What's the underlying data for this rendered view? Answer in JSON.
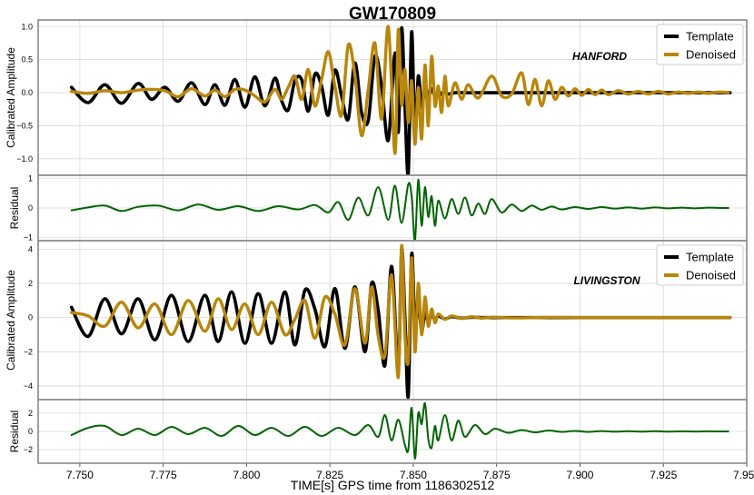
{
  "title": "GW170809",
  "xlabel": "TIME[s] GPS time from 1186302512",
  "colors": {
    "template": "#000000",
    "denoised": "#b8860b",
    "residual": "#006400",
    "grid": "#d9d9d9",
    "frame": "#888888"
  },
  "chart_data": [
    {
      "type": "line",
      "panel": "hanford-amplitude",
      "ylabel": "Calibrated Amplitude",
      "annotation": "HANFORD",
      "legend": {
        "placement": "top-right",
        "entries": [
          "Template",
          "Denoised"
        ]
      },
      "xlim": [
        7.7375,
        7.95
      ],
      "ylim": [
        -1.25,
        1.1
      ],
      "yticks": [
        -1.0,
        -0.5,
        0.0,
        0.5,
        1.0
      ],
      "ytick_labels": [
        "−1.0",
        "−0.5",
        "0.0",
        "0.5",
        "1.0"
      ],
      "grid": true,
      "series": [
        {
          "name": "Template",
          "color": "#000000",
          "x": [
            7.7475,
            7.7525,
            7.7575,
            7.7625,
            7.7675,
            7.7715,
            7.7755,
            7.7795,
            7.7835,
            7.7875,
            7.7905,
            7.7935,
            7.7965,
            7.7995,
            7.8025,
            7.8055,
            7.8085,
            7.8105,
            7.8125,
            7.8145,
            7.8165,
            7.8185,
            7.8205,
            7.8225,
            7.8245,
            7.8265,
            7.8285,
            7.8305,
            7.8325,
            7.8345,
            7.8365,
            7.8385,
            7.8405,
            7.8425,
            7.8445,
            7.8455,
            7.8465,
            7.8475,
            7.8485,
            7.8495,
            7.8505,
            7.8515,
            7.8525,
            7.8535,
            7.8545,
            7.8555,
            7.8565,
            7.8575,
            7.8585,
            7.8595,
            7.8605,
            7.8625,
            7.8645,
            7.8665,
            7.8695,
            7.8735,
            7.88,
            7.89,
            7.9,
            7.91,
            7.92,
            7.93,
            7.94,
            7.945
          ],
          "y": [
            0.08,
            -0.15,
            0.12,
            -0.16,
            0.14,
            -0.1,
            0.08,
            -0.13,
            0.15,
            -0.18,
            0.12,
            -0.19,
            0.2,
            -0.22,
            0.24,
            -0.2,
            0.22,
            -0.12,
            -0.26,
            0.18,
            0.2,
            -0.28,
            0.28,
            0.1,
            -0.34,
            0.34,
            -0.05,
            -0.4,
            0.45,
            -0.3,
            -0.42,
            0.55,
            0.1,
            -0.72,
            0.6,
            -0.6,
            0.98,
            -0.2,
            -1.22,
            0.92,
            -0.65,
            0.25,
            -0.22,
            0.1,
            -0.05,
            0.06,
            -0.05,
            0.03,
            -0.03,
            0.02,
            -0.02,
            0.0,
            0.0,
            0.0,
            0.0,
            0.0,
            0.0,
            0.0,
            0.0,
            0.0,
            0.0,
            0.0,
            0.0,
            0.0
          ]
        },
        {
          "name": "Denoised",
          "color": "#b8860b",
          "x": [
            7.7475,
            7.7525,
            7.7575,
            7.7625,
            7.7675,
            7.7715,
            7.7755,
            7.7795,
            7.7835,
            7.7875,
            7.7905,
            7.7935,
            7.7965,
            7.7995,
            7.8025,
            7.8055,
            7.8085,
            7.8105,
            7.8125,
            7.8145,
            7.8165,
            7.8185,
            7.8205,
            7.8225,
            7.8245,
            7.8265,
            7.8285,
            7.8305,
            7.8325,
            7.8345,
            7.8365,
            7.8385,
            7.8405,
            7.8425,
            7.8445,
            7.8455,
            7.8465,
            7.8475,
            7.8485,
            7.8495,
            7.8505,
            7.8515,
            7.8525,
            7.8535,
            7.8545,
            7.8555,
            7.8565,
            7.8575,
            7.8585,
            7.8595,
            7.8605,
            7.8625,
            7.8645,
            7.8665,
            7.8695,
            7.8735,
            7.8765,
            7.8795,
            7.8825,
            7.8845,
            7.8865,
            7.8885,
            7.8905,
            7.8925,
            7.8945,
            7.8965,
            7.8985,
            7.9005,
            7.9025,
            7.9045,
            7.9065,
            7.9085,
            7.9115,
            7.9145,
            7.9175,
            7.9205,
            7.9235,
            7.9265,
            7.9295,
            7.9325,
            7.9355,
            7.9385,
            7.9415,
            7.9445
          ],
          "y": [
            0.02,
            -0.01,
            0.03,
            0.0,
            0.04,
            0.05,
            0.03,
            -0.06,
            0.06,
            -0.05,
            0.04,
            -0.06,
            0.05,
            0.04,
            -0.05,
            -0.14,
            0.05,
            -0.1,
            0.08,
            0.25,
            -0.1,
            0.35,
            -0.2,
            0.2,
            0.62,
            0.1,
            -0.34,
            0.72,
            0.26,
            -0.65,
            0.05,
            0.75,
            -0.4,
            1.0,
            -0.92,
            0.95,
            -0.18,
            0.35,
            -0.45,
            0.18,
            -0.78,
            0.08,
            -0.7,
            0.42,
            -0.5,
            0.55,
            -0.2,
            0.1,
            -0.3,
            0.25,
            -0.2,
            0.15,
            -0.1,
            0.12,
            -0.08,
            0.25,
            -0.05,
            -0.02,
            0.3,
            -0.18,
            0.2,
            -0.2,
            0.18,
            -0.1,
            0.08,
            -0.05,
            0.06,
            -0.04,
            0.05,
            -0.03,
            0.04,
            -0.03,
            0.03,
            -0.02,
            0.02,
            -0.02,
            0.02,
            -0.02,
            0.01,
            -0.01,
            0.01,
            -0.01,
            0.01,
            0.0
          ]
        }
      ]
    },
    {
      "type": "line",
      "panel": "hanford-residual",
      "ylabel": "Residual",
      "xlim": [
        7.7375,
        7.95
      ],
      "ylim": [
        -1.1,
        1.1
      ],
      "yticks": [
        -1,
        0,
        1
      ],
      "ytick_labels": [
        "−1",
        "0",
        "1"
      ],
      "grid": true,
      "series": [
        {
          "color": "#006400",
          "x": [
            7.7475,
            7.7525,
            7.7575,
            7.7625,
            7.7675,
            7.7735,
            7.7795,
            7.7855,
            7.7915,
            7.7975,
            7.8035,
            7.8095,
            7.8155,
            7.8205,
            7.8245,
            7.8275,
            7.8305,
            7.8335,
            7.8365,
            7.8395,
            7.8425,
            7.8445,
            7.8465,
            7.8485,
            7.8495,
            7.8505,
            7.8515,
            7.8525,
            7.8535,
            7.8545,
            7.8555,
            7.8565,
            7.8575,
            7.8595,
            7.8615,
            7.8635,
            7.8655,
            7.8675,
            7.8695,
            7.8715,
            7.8735,
            7.8765,
            7.8795,
            7.8825,
            7.8855,
            7.8885,
            7.8915,
            7.8945,
            7.8985,
            7.9025,
            7.9065,
            7.9105,
            7.9145,
            7.9185,
            7.9225,
            7.9265,
            7.9305,
            7.9345,
            7.9385,
            7.9425,
            7.9445
          ],
          "y": [
            -0.08,
            0.02,
            0.08,
            -0.1,
            0.04,
            0.08,
            -0.08,
            0.12,
            -0.06,
            0.06,
            -0.1,
            0.06,
            -0.05,
            0.1,
            -0.15,
            0.2,
            -0.4,
            0.35,
            -0.25,
            0.7,
            -0.4,
            0.75,
            -0.5,
            0.8,
            0.4,
            -1.1,
            0.95,
            -0.6,
            0.7,
            -0.3,
            0.4,
            -0.6,
            0.25,
            -0.35,
            0.3,
            -0.2,
            0.35,
            -0.25,
            0.15,
            -0.2,
            0.3,
            -0.15,
            0.12,
            -0.1,
            0.08,
            -0.06,
            0.05,
            -0.05,
            0.03,
            -0.03,
            0.03,
            -0.02,
            0.02,
            -0.02,
            0.02,
            -0.01,
            0.01,
            -0.01,
            0.01,
            0.0,
            0.0
          ]
        }
      ]
    },
    {
      "type": "line",
      "panel": "livingston-amplitude",
      "ylabel": "Calibrated Amplitude",
      "annotation": "LIVINGSTON",
      "legend": {
        "placement": "top-right",
        "entries": [
          "Template",
          "Denoised"
        ]
      },
      "xlim": [
        7.7375,
        7.95
      ],
      "ylim": [
        -4.8,
        4.5
      ],
      "yticks": [
        -4,
        -2,
        0,
        2,
        4
      ],
      "ytick_labels": [
        "−4",
        "−2",
        "0",
        "2",
        "4"
      ],
      "grid": true,
      "series": [
        {
          "name": "Template",
          "color": "#000000",
          "x": [
            7.7475,
            7.7525,
            7.7575,
            7.7625,
            7.7675,
            7.7725,
            7.7775,
            7.7825,
            7.7875,
            7.7915,
            7.7955,
            7.7995,
            7.8035,
            7.8075,
            7.8115,
            7.8145,
            7.8175,
            7.8205,
            7.8235,
            7.8265,
            7.8295,
            7.8325,
            7.8355,
            7.8375,
            7.8395,
            7.8415,
            7.8435,
            7.8455,
            7.8465,
            7.8475,
            7.8485,
            7.8495,
            7.8505,
            7.8515,
            7.8525,
            7.8535,
            7.8545,
            7.8555,
            7.8565,
            7.8575,
            7.8595,
            7.8615,
            7.8645,
            7.8675,
            7.8705,
            7.874,
            7.88,
            7.89,
            7.9,
            7.91,
            7.92,
            7.93,
            7.94,
            7.945
          ],
          "y": [
            0.6,
            -1.1,
            1.1,
            -0.95,
            1.1,
            -1.3,
            1.3,
            -1.4,
            1.3,
            -1.4,
            1.5,
            -1.5,
            1.4,
            -1.5,
            1.5,
            -1.6,
            1.6,
            0.5,
            -1.7,
            1.7,
            -1.8,
            1.8,
            -2.0,
            2.0,
            0.4,
            -2.8,
            3.0,
            -3.0,
            4.0,
            0.0,
            -4.6,
            3.7,
            -0.5,
            1.0,
            -0.8,
            0.3,
            -0.3,
            0.2,
            -0.15,
            0.1,
            -0.08,
            0.05,
            -0.03,
            0.02,
            0.0,
            0.0,
            0.0,
            0.0,
            0.0,
            0.0,
            0.0,
            0.0,
            0.0,
            0.0
          ]
        },
        {
          "name": "Denoised",
          "color": "#b8860b",
          "x": [
            7.7475,
            7.7525,
            7.7575,
            7.7625,
            7.7675,
            7.7725,
            7.7775,
            7.7825,
            7.7875,
            7.7915,
            7.7955,
            7.7995,
            7.8035,
            7.8075,
            7.8115,
            7.8145,
            7.8175,
            7.8205,
            7.8235,
            7.8265,
            7.8295,
            7.8325,
            7.8355,
            7.8375,
            7.8395,
            7.8415,
            7.8435,
            7.8455,
            7.8465,
            7.8475,
            7.8485,
            7.8495,
            7.8505,
            7.8515,
            7.8525,
            7.8535,
            7.8545,
            7.8555,
            7.8565,
            7.8575,
            7.8595,
            7.8615,
            7.8645,
            7.8675,
            7.8705,
            7.874,
            7.88,
            7.89,
            7.9,
            7.91,
            7.92,
            7.93,
            7.94,
            7.945
          ],
          "y": [
            0.3,
            0.1,
            -0.5,
            0.9,
            -0.6,
            0.8,
            -1.0,
            1.0,
            -0.8,
            1.1,
            -0.7,
            0.8,
            -1.0,
            0.9,
            -1.0,
            -0.1,
            1.0,
            -1.2,
            1.2,
            0.2,
            -1.6,
            1.7,
            -1.5,
            1.8,
            -1.1,
            -2.2,
            2.5,
            -3.5,
            4.2,
            -1.0,
            -2.5,
            3.5,
            -2.0,
            2.0,
            -1.0,
            1.2,
            -0.5,
            0.5,
            -0.3,
            0.2,
            -0.1,
            0.1,
            -0.05,
            0.05,
            -0.03,
            0.02,
            -0.02,
            0.01,
            0.0,
            0.0,
            0.0,
            0.0,
            0.0,
            0.0
          ]
        }
      ]
    },
    {
      "type": "line",
      "panel": "livingston-residual",
      "ylabel": "Residual",
      "xlabel": "TIME[s] GPS time from 1186302512",
      "xlim": [
        7.7375,
        7.95
      ],
      "ylim": [
        -3.5,
        3.5
      ],
      "xticks": [
        7.75,
        7.775,
        7.8,
        7.825,
        7.85,
        7.875,
        7.9,
        7.925,
        7.95
      ],
      "xtick_labels": [
        "7.750",
        "7.775",
        "7.800",
        "7.825",
        "7.850",
        "7.875",
        "7.900",
        "7.925",
        "7.950"
      ],
      "yticks": [
        -2,
        0,
        2
      ],
      "ytick_labels": [
        "−2",
        "0",
        "2"
      ],
      "grid": true,
      "series": [
        {
          "color": "#006400",
          "x": [
            7.7475,
            7.7525,
            7.7575,
            7.7625,
            7.7675,
            7.7725,
            7.7775,
            7.7825,
            7.7875,
            7.7925,
            7.7975,
            7.8025,
            7.8075,
            7.8125,
            7.8175,
            7.8225,
            7.8275,
            7.8325,
            7.8365,
            7.8395,
            7.8415,
            7.8435,
            7.8455,
            7.8475,
            7.8485,
            7.8495,
            7.8505,
            7.8515,
            7.8525,
            7.8535,
            7.8545,
            7.8555,
            7.8565,
            7.8575,
            7.8595,
            7.8615,
            7.8635,
            7.8655,
            7.8685,
            7.8715,
            7.8745,
            7.8785,
            7.8825,
            7.8865,
            7.8905,
            7.8945,
            7.8985,
            7.9025,
            7.9065,
            7.9105,
            7.9145,
            7.9185,
            7.9225,
            7.9265,
            7.9305,
            7.9345,
            7.9385,
            7.9425,
            7.9445
          ],
          "y": [
            -0.4,
            0.4,
            0.6,
            -0.4,
            0.3,
            -0.4,
            0.5,
            -0.3,
            0.4,
            -0.5,
            0.6,
            -0.4,
            0.4,
            -0.5,
            0.5,
            -0.5,
            0.4,
            -0.4,
            0.7,
            -0.6,
            1.8,
            -1.0,
            1.3,
            -1.5,
            -2.0,
            2.6,
            -3.0,
            2.0,
            0.8,
            3.1,
            -0.8,
            -1.8,
            0.6,
            -1.0,
            1.8,
            -1.0,
            1.2,
            -0.6,
            0.7,
            -0.3,
            0.3,
            -0.15,
            0.15,
            -0.1,
            0.1,
            -0.05,
            0.05,
            -0.05,
            0.04,
            -0.03,
            0.03,
            -0.02,
            0.02,
            -0.02,
            0.01,
            -0.01,
            0.01,
            0.0,
            0.0
          ]
        }
      ]
    }
  ]
}
